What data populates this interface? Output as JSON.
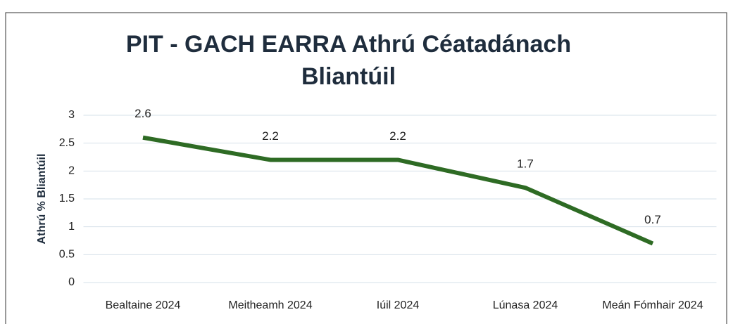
{
  "chart_data": {
    "type": "line",
    "title": "PIT - GACH EARRA  Athrú Céatadánach Bliantúil",
    "y_label": "Athrú % Bliantúil",
    "categories": [
      "Bealtaine 2024",
      "Meitheamh 2024",
      "Iúil 2024",
      "Lúnasa 2024",
      "Meán Fómhair 2024"
    ],
    "series": [
      {
        "name": "PIT",
        "color": "#2e6b24",
        "values": [
          2.6,
          2.2,
          2.2,
          1.7,
          0.7
        ]
      }
    ],
    "ylim": [
      0,
      3
    ],
    "yticks": [
      0,
      0.5,
      1,
      1.5,
      2,
      2.5,
      3
    ],
    "grid": true
  }
}
